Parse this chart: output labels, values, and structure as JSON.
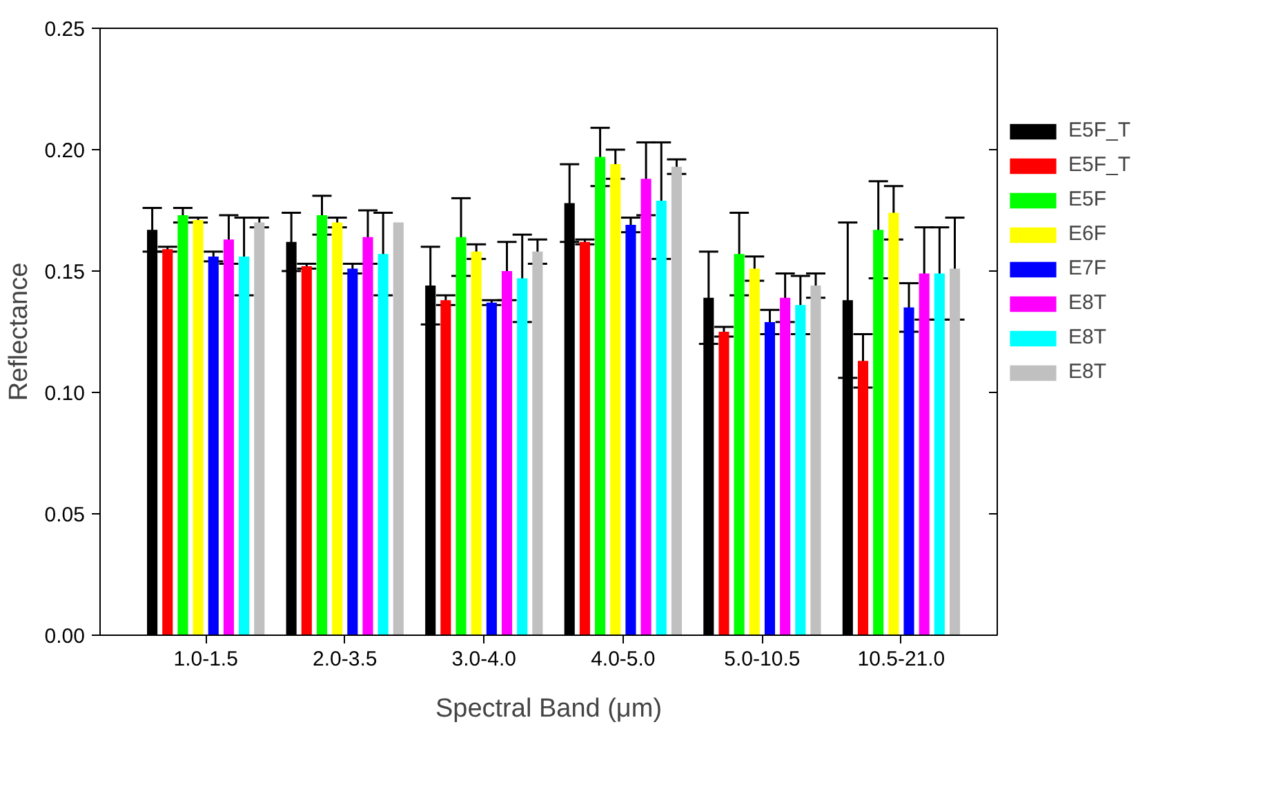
{
  "chart_data": {
    "type": "bar",
    "xlabel": "Spectral Band (μm)",
    "ylabel": "Reflectance",
    "categories": [
      "1.0-1.5",
      "2.0-3.5",
      "3.0-4.0",
      "4.0-5.0",
      "5.0-10.5",
      "10.5-21.0"
    ],
    "ylim": [
      0,
      0.25
    ],
    "yticks": [
      {
        "value": 0,
        "label": "0.00"
      },
      {
        "value": 0.05,
        "label": "0.05"
      },
      {
        "value": 0.1,
        "label": "0.10"
      },
      {
        "value": 0.15,
        "label": "0.15"
      },
      {
        "value": 0.2,
        "label": "0.20"
      },
      {
        "value": 0.25,
        "label": "0.25"
      }
    ],
    "grid": false,
    "legend": "right",
    "series": [
      {
        "name": "E5F_T",
        "color": "#000000",
        "values": [
          0.167,
          0.162,
          0.144,
          0.178,
          0.139,
          0.138
        ],
        "errors": [
          0.009,
          0.012,
          0.016,
          0.016,
          0.019,
          0.032
        ]
      },
      {
        "name": "E5F_T",
        "color": "#ff0000",
        "values": [
          0.159,
          0.152,
          0.138,
          0.162,
          0.125,
          0.113
        ],
        "errors": [
          0.001,
          0.001,
          0.002,
          0.001,
          0.002,
          0.011
        ]
      },
      {
        "name": "E5F",
        "color": "#00ff00",
        "values": [
          0.173,
          0.173,
          0.164,
          0.197,
          0.157,
          0.167
        ],
        "errors": [
          0.003,
          0.008,
          0.016,
          0.012,
          0.017,
          0.02
        ]
      },
      {
        "name": "E6F",
        "color": "#ffff00",
        "values": [
          0.171,
          0.17,
          0.158,
          0.194,
          0.151,
          0.174
        ],
        "errors": [
          0.001,
          0.002,
          0.003,
          0.006,
          0.005,
          0.011
        ]
      },
      {
        "name": "E7F",
        "color": "#0000ff",
        "values": [
          0.156,
          0.151,
          0.137,
          0.169,
          0.129,
          0.135
        ],
        "errors": [
          0.002,
          0.002,
          0.001,
          0.003,
          0.005,
          0.01
        ]
      },
      {
        "name": "E8T",
        "color": "#ff00ff",
        "values": [
          0.163,
          0.164,
          0.15,
          0.188,
          0.139,
          0.149
        ],
        "errors": [
          0.01,
          0.011,
          0.012,
          0.015,
          0.01,
          0.019
        ]
      },
      {
        "name": "E8T",
        "color": "#00ffff",
        "values": [
          0.156,
          0.157,
          0.147,
          0.179,
          0.136,
          0.149
        ],
        "errors": [
          0.016,
          0.017,
          0.018,
          0.024,
          0.012,
          0.019
        ]
      },
      {
        "name": "E8T",
        "color": "#c0c0c0",
        "values": [
          0.17,
          0.17,
          0.158,
          0.193,
          0.144,
          0.151
        ],
        "errors": [
          0.002,
          null,
          0.005,
          0.003,
          0.005,
          0.021
        ]
      }
    ]
  }
}
